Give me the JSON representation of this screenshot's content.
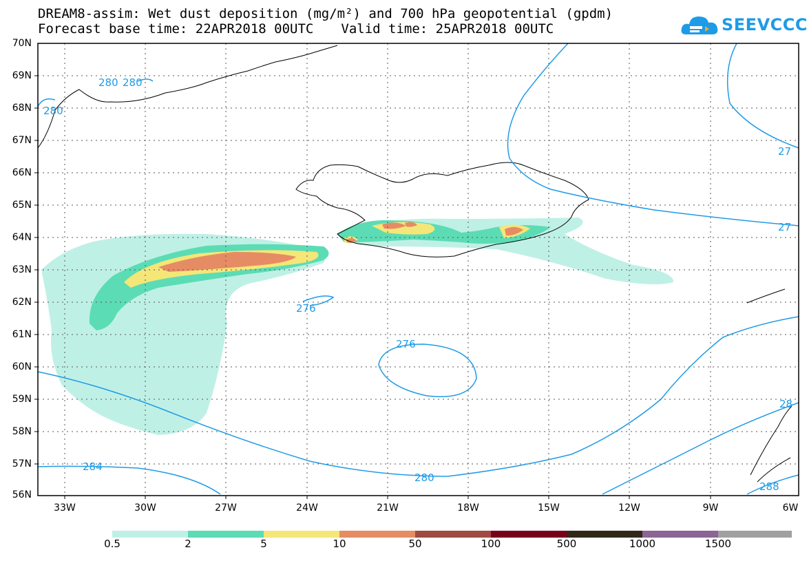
{
  "title_line1": "DREAM8-assim: Wet dust deposition (mg/m²) and 700 hPa geopotential (gpdm)",
  "forecast_base": "Forecast base time: 22APR2018 00UTC",
  "valid_time": "Valid time: 25APR2018 00UTC",
  "logo": {
    "text": "SEEVCCC",
    "icon": "cloud-icon",
    "color": "#1e9be6"
  },
  "lat_labels": [
    "70N",
    "69N",
    "68N",
    "67N",
    "66N",
    "65N",
    "64N",
    "63N",
    "62N",
    "61N",
    "60N",
    "59N",
    "58N",
    "57N",
    "56N"
  ],
  "lon_labels": [
    "33W",
    "30W",
    "27W",
    "24W",
    "21W",
    "18W",
    "15W",
    "12W",
    "9W",
    "6W"
  ],
  "contour_labels": [
    "280",
    "280",
    "280",
    "276",
    "276",
    "280",
    "284",
    "27",
    "27",
    "28",
    "288"
  ],
  "colorbar": {
    "labels": [
      "0.5",
      "2",
      "5",
      "10",
      "50",
      "100",
      "500",
      "1000",
      "1500"
    ],
    "colors": [
      "#bff0e6",
      "#5cdcb4",
      "#f5e678",
      "#e68c64",
      "#a04b41",
      "#780019",
      "#322819",
      "#8c6496",
      "#a0a0a0"
    ]
  },
  "map_colors": {
    "contour": "#1e9be6",
    "coast": "#000000",
    "grid": "#555555"
  }
}
